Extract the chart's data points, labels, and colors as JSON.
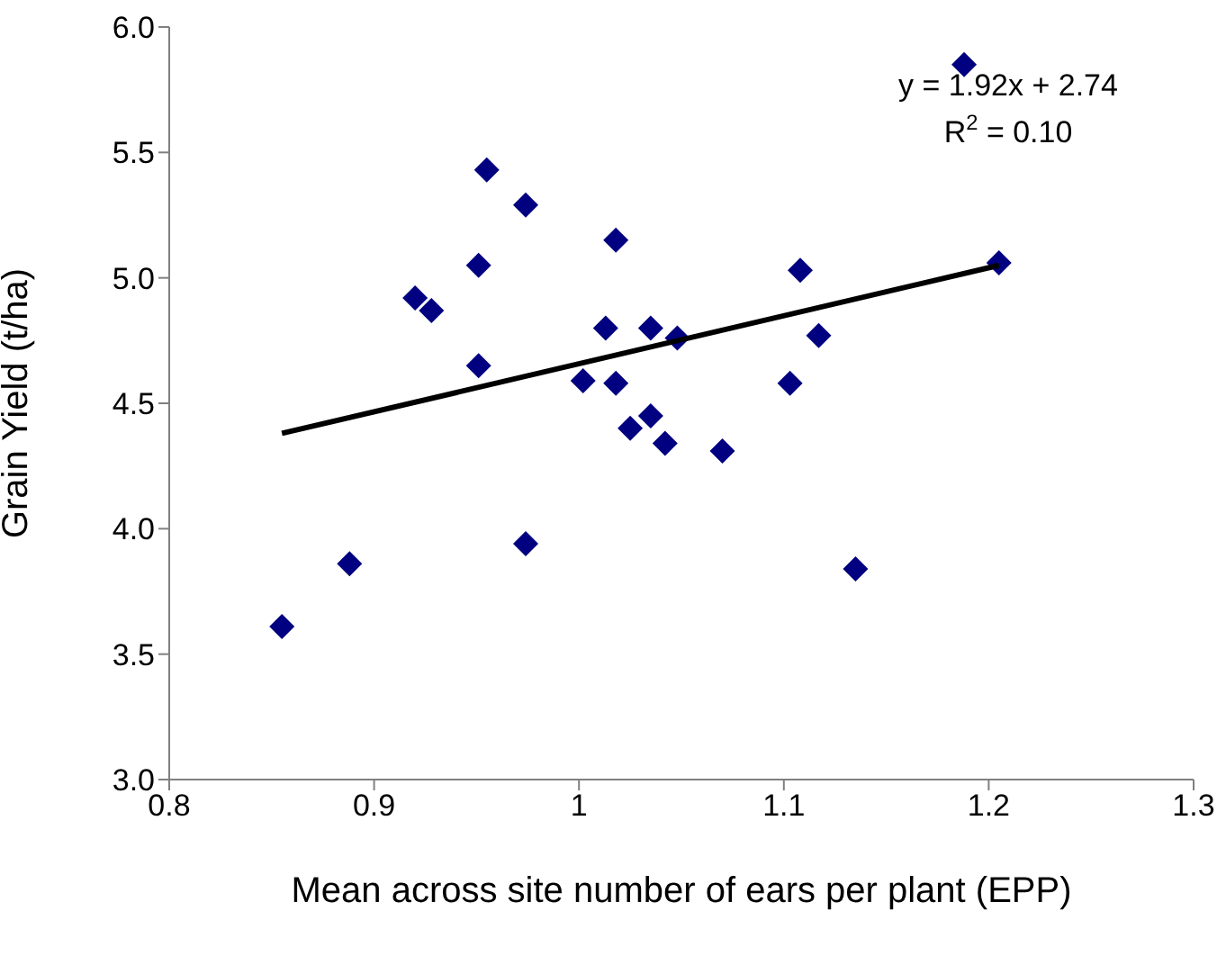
{
  "chart_data": {
    "type": "scatter",
    "xlabel": "Mean across site number of ears per plant (EPP)",
    "ylabel": "Grain Yield (t/ha)",
    "annotations": [
      "y = 1.92x + 2.74",
      "R$^{2}$ = 0.10"
    ],
    "series": [
      {
        "marker": "diamond",
        "color": "#000080",
        "x": [
          0.855,
          0.888,
          0.92,
          0.928,
          0.951,
          0.951,
          0.955,
          0.974,
          0.974,
          1.002,
          1.013,
          1.018,
          1.018,
          1.025,
          1.035,
          1.035,
          1.042,
          1.048,
          1.07,
          1.103,
          1.108,
          1.117,
          1.135,
          1.188,
          1.205
        ],
        "values": [
          3.61,
          3.86,
          4.92,
          4.87,
          5.05,
          4.65,
          5.43,
          5.29,
          3.94,
          4.59,
          4.8,
          5.15,
          4.58,
          4.4,
          4.8,
          4.45,
          4.34,
          4.76,
          4.31,
          4.58,
          5.03,
          4.77,
          3.84,
          5.85,
          5.06
        ]
      },
      {
        "type": "line",
        "marker": "none",
        "color": "#000000",
        "x": [
          0.855,
          1.205
        ],
        "values": [
          4.38,
          5.05
        ]
      }
    ],
    "xlim": [
      0.8,
      1.3
    ],
    "xticks": [
      0.8,
      0.9,
      1,
      1.1,
      1.2,
      1.3
    ],
    "ylim": [
      3.0,
      6.0
    ],
    "yticks": [
      {
        "value": 3,
        "label": "3.0"
      },
      3.5,
      {
        "value": 4,
        "label": "4.0"
      },
      4.5,
      {
        "value": 5,
        "label": "5.0"
      },
      5.5,
      {
        "value": 6,
        "label": "6.0"
      }
    ],
    "grid": false,
    "legend": false,
    "line_style": "solid"
  }
}
